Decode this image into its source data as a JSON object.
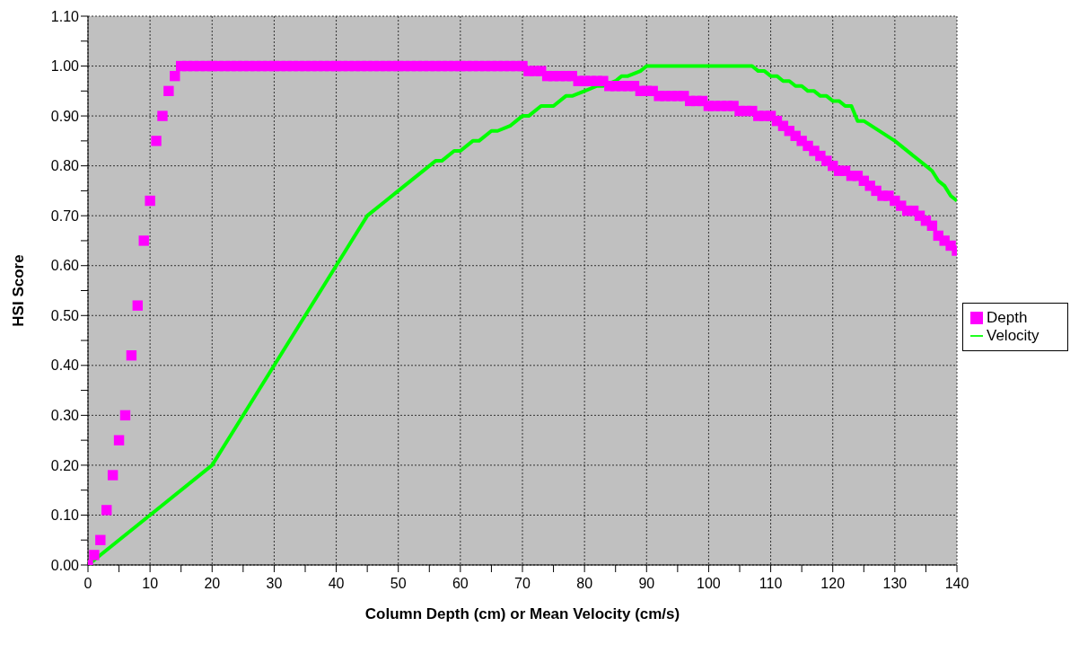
{
  "chart_data": {
    "type": "scatter",
    "xlabel": "Column Depth (cm) or Mean Velocity (cm/s)",
    "ylabel": "HSI Score",
    "xlim": [
      0,
      140
    ],
    "xticks": [
      0,
      {
        "value": 5,
        "label": null
      },
      10,
      {
        "value": 15,
        "label": null
      },
      20,
      {
        "value": 25,
        "label": null
      },
      30,
      {
        "value": 35,
        "label": null
      },
      40,
      {
        "value": 45,
        "label": null
      },
      50,
      {
        "value": 55,
        "label": null
      },
      60,
      {
        "value": 65,
        "label": null
      },
      70,
      {
        "value": 75,
        "label": null
      },
      80,
      {
        "value": 85,
        "label": null
      },
      90,
      {
        "value": 95,
        "label": null
      },
      100,
      {
        "value": 105,
        "label": null
      },
      110,
      {
        "value": 115,
        "label": null
      },
      120,
      {
        "value": 125,
        "label": null
      },
      130,
      {
        "value": 135,
        "label": null
      },
      140
    ],
    "ylim": [
      0,
      1.1
    ],
    "yticks": [
      {
        "value": 0,
        "label": "0.00"
      },
      {
        "value": 0.05,
        "label": null
      },
      {
        "value": 0.1,
        "label": "0.10"
      },
      {
        "value": 0.15,
        "label": null
      },
      {
        "value": 0.2,
        "label": "0.20"
      },
      {
        "value": 0.25,
        "label": null
      },
      {
        "value": 0.3,
        "label": "0.30"
      },
      {
        "value": 0.35,
        "label": null
      },
      {
        "value": 0.4,
        "label": "0.40"
      },
      {
        "value": 0.45,
        "label": null
      },
      {
        "value": 0.5,
        "label": "0.50"
      },
      {
        "value": 0.55,
        "label": null
      },
      {
        "value": 0.6,
        "label": "0.60"
      },
      {
        "value": 0.65,
        "label": null
      },
      {
        "value": 0.7,
        "label": "0.70"
      },
      {
        "value": 0.75,
        "label": null
      },
      {
        "value": 0.8,
        "label": "0.80"
      },
      {
        "value": 0.85,
        "label": null
      },
      {
        "value": 0.9,
        "label": "0.90"
      },
      {
        "value": 0.95,
        "label": null
      },
      {
        "value": 1,
        "label": "1.00"
      },
      {
        "value": 1.05,
        "label": null
      },
      {
        "value": 1.1,
        "label": "1.10"
      }
    ],
    "grid": true,
    "legend": "right",
    "series": [
      {
        "name": "Depth",
        "marker": "square",
        "color": "#ff00ff",
        "x": [
          0,
          1,
          2,
          3,
          4,
          5,
          6,
          7,
          8,
          9,
          10,
          11,
          12,
          13,
          14,
          15,
          16,
          17,
          18,
          19,
          20,
          21,
          22,
          23,
          24,
          25,
          26,
          27,
          28,
          29,
          30,
          31,
          32,
          33,
          34,
          35,
          36,
          37,
          38,
          39,
          40,
          41,
          42,
          43,
          44,
          45,
          46,
          47,
          48,
          49,
          50,
          51,
          52,
          53,
          54,
          55,
          56,
          57,
          58,
          59,
          60,
          61,
          62,
          63,
          64,
          65,
          66,
          67,
          68,
          69,
          70,
          71,
          72,
          73,
          74,
          75,
          76,
          77,
          78,
          79,
          80,
          81,
          82,
          83,
          84,
          85,
          86,
          87,
          88,
          89,
          90,
          91,
          92,
          93,
          94,
          95,
          96,
          97,
          98,
          99,
          100,
          101,
          102,
          103,
          104,
          105,
          106,
          107,
          108,
          109,
          110,
          111,
          112,
          113,
          114,
          115,
          116,
          117,
          118,
          119,
          120,
          121,
          122,
          123,
          124,
          125,
          126,
          127,
          128,
          129,
          130,
          131,
          132,
          133,
          134,
          135,
          136,
          137,
          138,
          139,
          140
        ],
        "values": [
          0,
          0.02,
          0.05,
          0.11,
          0.18,
          0.25,
          0.3,
          0.42,
          0.52,
          0.65,
          0.73,
          0.85,
          0.9,
          0.95,
          0.98,
          1,
          1,
          1,
          1,
          1,
          1,
          1,
          1,
          1,
          1,
          1,
          1,
          1,
          1,
          1,
          1,
          1,
          1,
          1,
          1,
          1,
          1,
          1,
          1,
          1,
          1,
          1,
          1,
          1,
          1,
          1,
          1,
          1,
          1,
          1,
          1,
          1,
          1,
          1,
          1,
          1,
          1,
          1,
          1,
          1,
          1,
          1,
          1,
          1,
          1,
          1,
          1,
          1,
          1,
          1,
          1,
          0.99,
          0.99,
          0.99,
          0.98,
          0.98,
          0.98,
          0.98,
          0.98,
          0.97,
          0.97,
          0.97,
          0.97,
          0.97,
          0.96,
          0.96,
          0.96,
          0.96,
          0.96,
          0.95,
          0.95,
          0.95,
          0.94,
          0.94,
          0.94,
          0.94,
          0.94,
          0.93,
          0.93,
          0.93,
          0.92,
          0.92,
          0.92,
          0.92,
          0.92,
          0.91,
          0.91,
          0.91,
          0.9,
          0.9,
          0.9,
          0.89,
          0.88,
          0.87,
          0.86,
          0.85,
          0.84,
          0.83,
          0.82,
          0.81,
          0.8,
          0.79,
          0.79,
          0.78,
          0.78,
          0.77,
          0.76,
          0.75,
          0.74,
          0.74,
          0.73,
          0.72,
          0.71,
          0.71,
          0.7,
          0.69,
          0.68,
          0.66,
          0.65,
          0.64,
          0.63
        ]
      },
      {
        "name": "Velocity",
        "type": "line",
        "marker": "none",
        "line_style": "solid",
        "color": "#00ff00",
        "x": [
          0,
          10,
          20,
          30,
          40,
          45,
          48,
          50,
          56,
          57,
          59,
          60,
          62,
          63,
          65,
          66,
          68,
          69,
          70,
          71,
          73,
          75,
          77,
          78,
          80,
          82,
          83,
          85,
          86,
          87,
          89,
          90,
          107,
          108,
          109,
          110,
          111,
          112,
          113,
          114,
          115,
          116,
          117,
          118,
          119,
          120,
          121,
          122,
          123,
          124,
          125,
          130,
          135,
          136,
          137,
          138,
          139,
          140
        ],
        "values": [
          0,
          0.1,
          0.2,
          0.4,
          0.6,
          0.7,
          0.73,
          0.75,
          0.81,
          0.81,
          0.83,
          0.83,
          0.85,
          0.85,
          0.87,
          0.87,
          0.88,
          0.89,
          0.9,
          0.9,
          0.92,
          0.92,
          0.94,
          0.94,
          0.95,
          0.96,
          0.96,
          0.97,
          0.98,
          0.98,
          0.99,
          1,
          1,
          0.99,
          0.99,
          0.98,
          0.98,
          0.97,
          0.97,
          0.96,
          0.96,
          0.95,
          0.95,
          0.94,
          0.94,
          0.93,
          0.93,
          0.92,
          0.92,
          0.89,
          0.89,
          0.85,
          0.8,
          0.79,
          0.77,
          0.76,
          0.74,
          0.73
        ]
      }
    ]
  }
}
